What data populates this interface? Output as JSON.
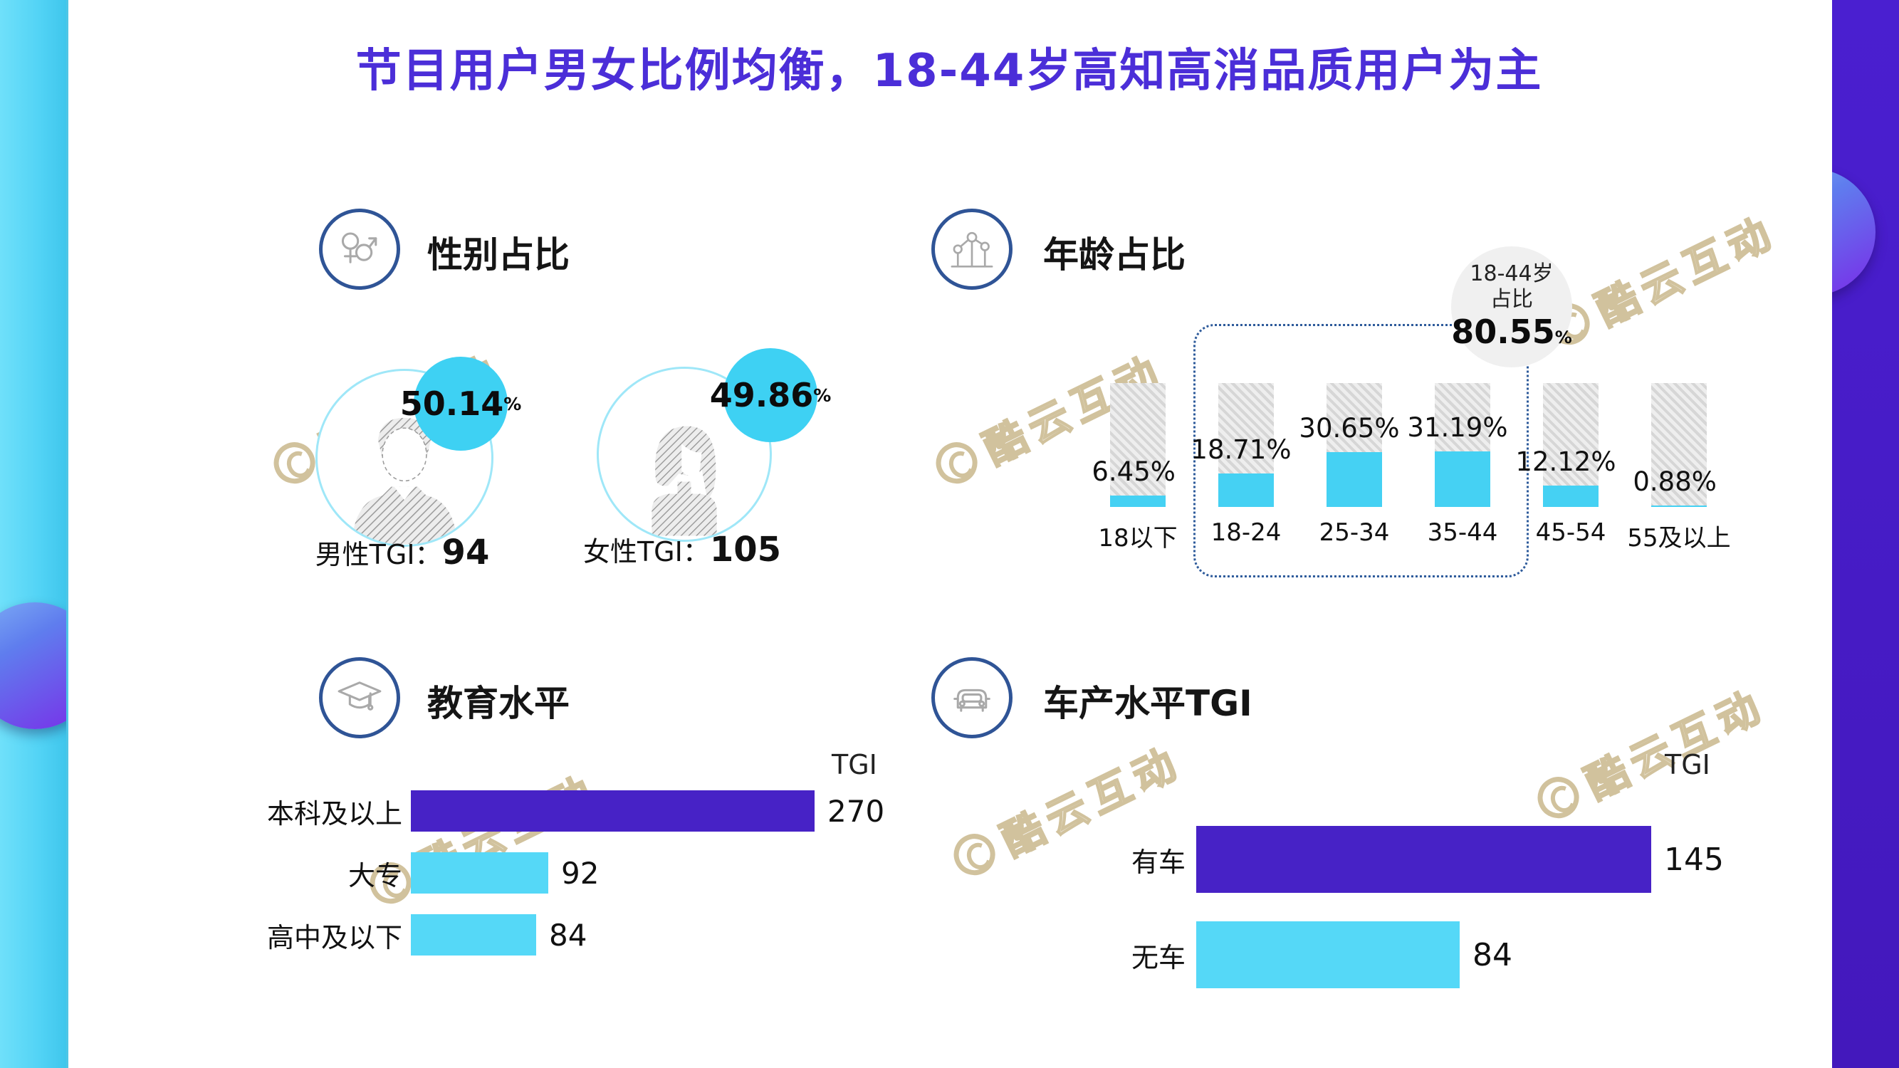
{
  "title": "节目用户男女比例均衡，18-44岁高知高消品质用户为主",
  "watermark": {
    "text": "酷云互动"
  },
  "colors": {
    "title": "#4B2ED8",
    "purple_bar": "#4722C6",
    "cyan_bar": "#55D8F7",
    "age_fill": "#45D1F3",
    "badge_cyan": "#3ED1F3",
    "badge_gray": "#F0F0F0",
    "icon_ring": "#2F5496",
    "dotted_box": "#2E5B9B",
    "left_edge_bar": "#52D3F5",
    "right_edge_bar": "#4318BC",
    "watermark_gold": "#C9B88C"
  },
  "gender": {
    "heading": "性别占比",
    "male": {
      "percent": "50.14",
      "unit": "%",
      "label": "男性TGI：",
      "tgi": "94"
    },
    "female": {
      "percent": "49.86",
      "unit": "%",
      "label": "女性TGI：",
      "tgi": "105"
    }
  },
  "age": {
    "heading": "年龄占比",
    "badge": {
      "line1": "18-44岁",
      "line2": "占比",
      "value": "80.55",
      "unit": "%"
    }
  },
  "education": {
    "heading": "教育水平",
    "axis_label": "TGI"
  },
  "car": {
    "heading": "车产水平TGI",
    "axis_label": "TGI"
  },
  "chart_data": [
    {
      "type": "bar",
      "title": "年龄占比",
      "categories": [
        "18以下",
        "18-24",
        "25-34",
        "35-44",
        "45-54",
        "55及以上"
      ],
      "values": [
        6.45,
        18.71,
        30.65,
        31.19,
        12.12,
        0.88
      ],
      "labels": [
        "6.45%",
        "18.71%",
        "30.65%",
        "31.19%",
        "12.12%",
        "0.88%"
      ],
      "unit": "%",
      "ylim": [
        0,
        70
      ],
      "grid": false,
      "bar_track": "gray-hatch-100%",
      "fill_color": "#45D1F3",
      "highlight_group": {
        "categories": [
          "18-24",
          "25-34",
          "35-44"
        ],
        "label": "18-44岁 占比",
        "value": "80.55%"
      }
    },
    {
      "type": "bar",
      "orientation": "horizontal",
      "title": "教育水平",
      "xlabel": "TGI",
      "categories": [
        "本科及以上",
        "大专",
        "高中及以下"
      ],
      "values": [
        270,
        92,
        84
      ],
      "colors": [
        "#4722C6",
        "#55D8F7",
        "#55D8F7"
      ]
    },
    {
      "type": "bar",
      "orientation": "horizontal",
      "title": "车产水平TGI",
      "xlabel": "TGI",
      "categories": [
        "有车",
        "无车"
      ],
      "values": [
        145,
        84
      ],
      "colors": [
        "#4722C6",
        "#55D8F7"
      ]
    },
    {
      "type": "pie",
      "title": "性别占比",
      "categories": [
        "男性",
        "女性"
      ],
      "values": [
        50.14,
        49.86
      ],
      "tgi": {
        "男性": 94,
        "女性": 105
      }
    }
  ]
}
